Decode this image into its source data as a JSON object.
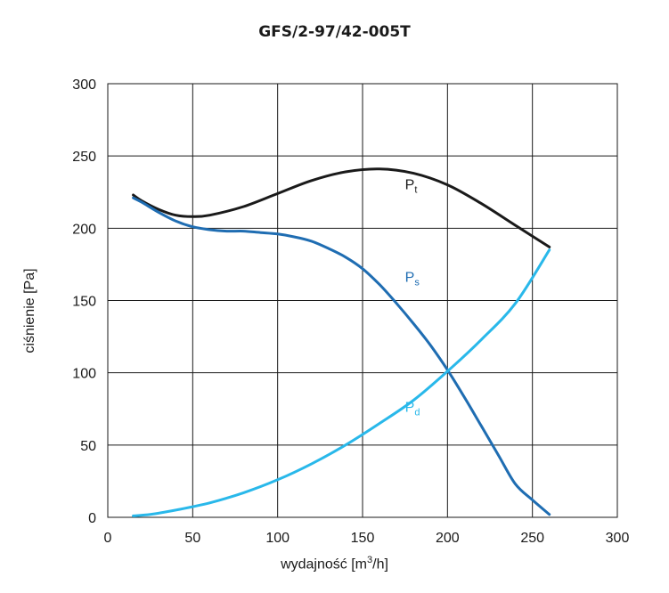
{
  "chart_data": {
    "type": "line",
    "title": "GFS/2-97/42-005T",
    "xlabel": {
      "prefix": "wydajność [m",
      "sup": "3",
      "suffix": "/h]"
    },
    "ylabel": "ciśnienie [Pa]",
    "xlim": [
      0,
      300
    ],
    "ylim": [
      0,
      300
    ],
    "xticks": [
      0,
      50,
      100,
      150,
      200,
      250,
      300
    ],
    "yticks": [
      0,
      50,
      100,
      150,
      200,
      250,
      300
    ],
    "grid": true,
    "series": [
      {
        "name": "Pt",
        "label_base": "P",
        "label_sub": "t",
        "label_at": [
          175,
          227
        ],
        "color": "#1a1a1a",
        "x": [
          15,
          20,
          30,
          40,
          50,
          60,
          80,
          100,
          120,
          140,
          160,
          180,
          200,
          220,
          240,
          260
        ],
        "y": [
          223,
          219,
          213,
          209,
          208,
          209,
          215,
          224,
          233,
          239,
          241,
          238,
          230,
          217,
          202,
          187
        ]
      },
      {
        "name": "Ps",
        "label_base": "P",
        "label_sub": "s",
        "label_at": [
          175,
          163
        ],
        "color": "#1f6db2",
        "x": [
          15,
          20,
          30,
          40,
          50,
          60,
          70,
          80,
          90,
          100,
          110,
          120,
          130,
          140,
          150,
          160,
          170,
          180,
          190,
          200,
          210,
          220,
          230,
          240,
          250,
          260
        ],
        "y": [
          221,
          218,
          211,
          205,
          201,
          199,
          198,
          198,
          197,
          196,
          194,
          191,
          186,
          180,
          172,
          161,
          148,
          134,
          119,
          102,
          83,
          63,
          43,
          23,
          12,
          2
        ]
      },
      {
        "name": "Pd",
        "label_base": "P",
        "label_sub": "d",
        "label_at": [
          175,
          73
        ],
        "color": "#29b8ea",
        "x": [
          15,
          25,
          40,
          60,
          80,
          100,
          120,
          140,
          160,
          180,
          200,
          220,
          240,
          260
        ],
        "y": [
          1,
          2,
          5,
          10,
          17,
          26,
          37,
          50,
          65,
          81,
          101,
          123,
          148,
          185
        ]
      }
    ]
  }
}
